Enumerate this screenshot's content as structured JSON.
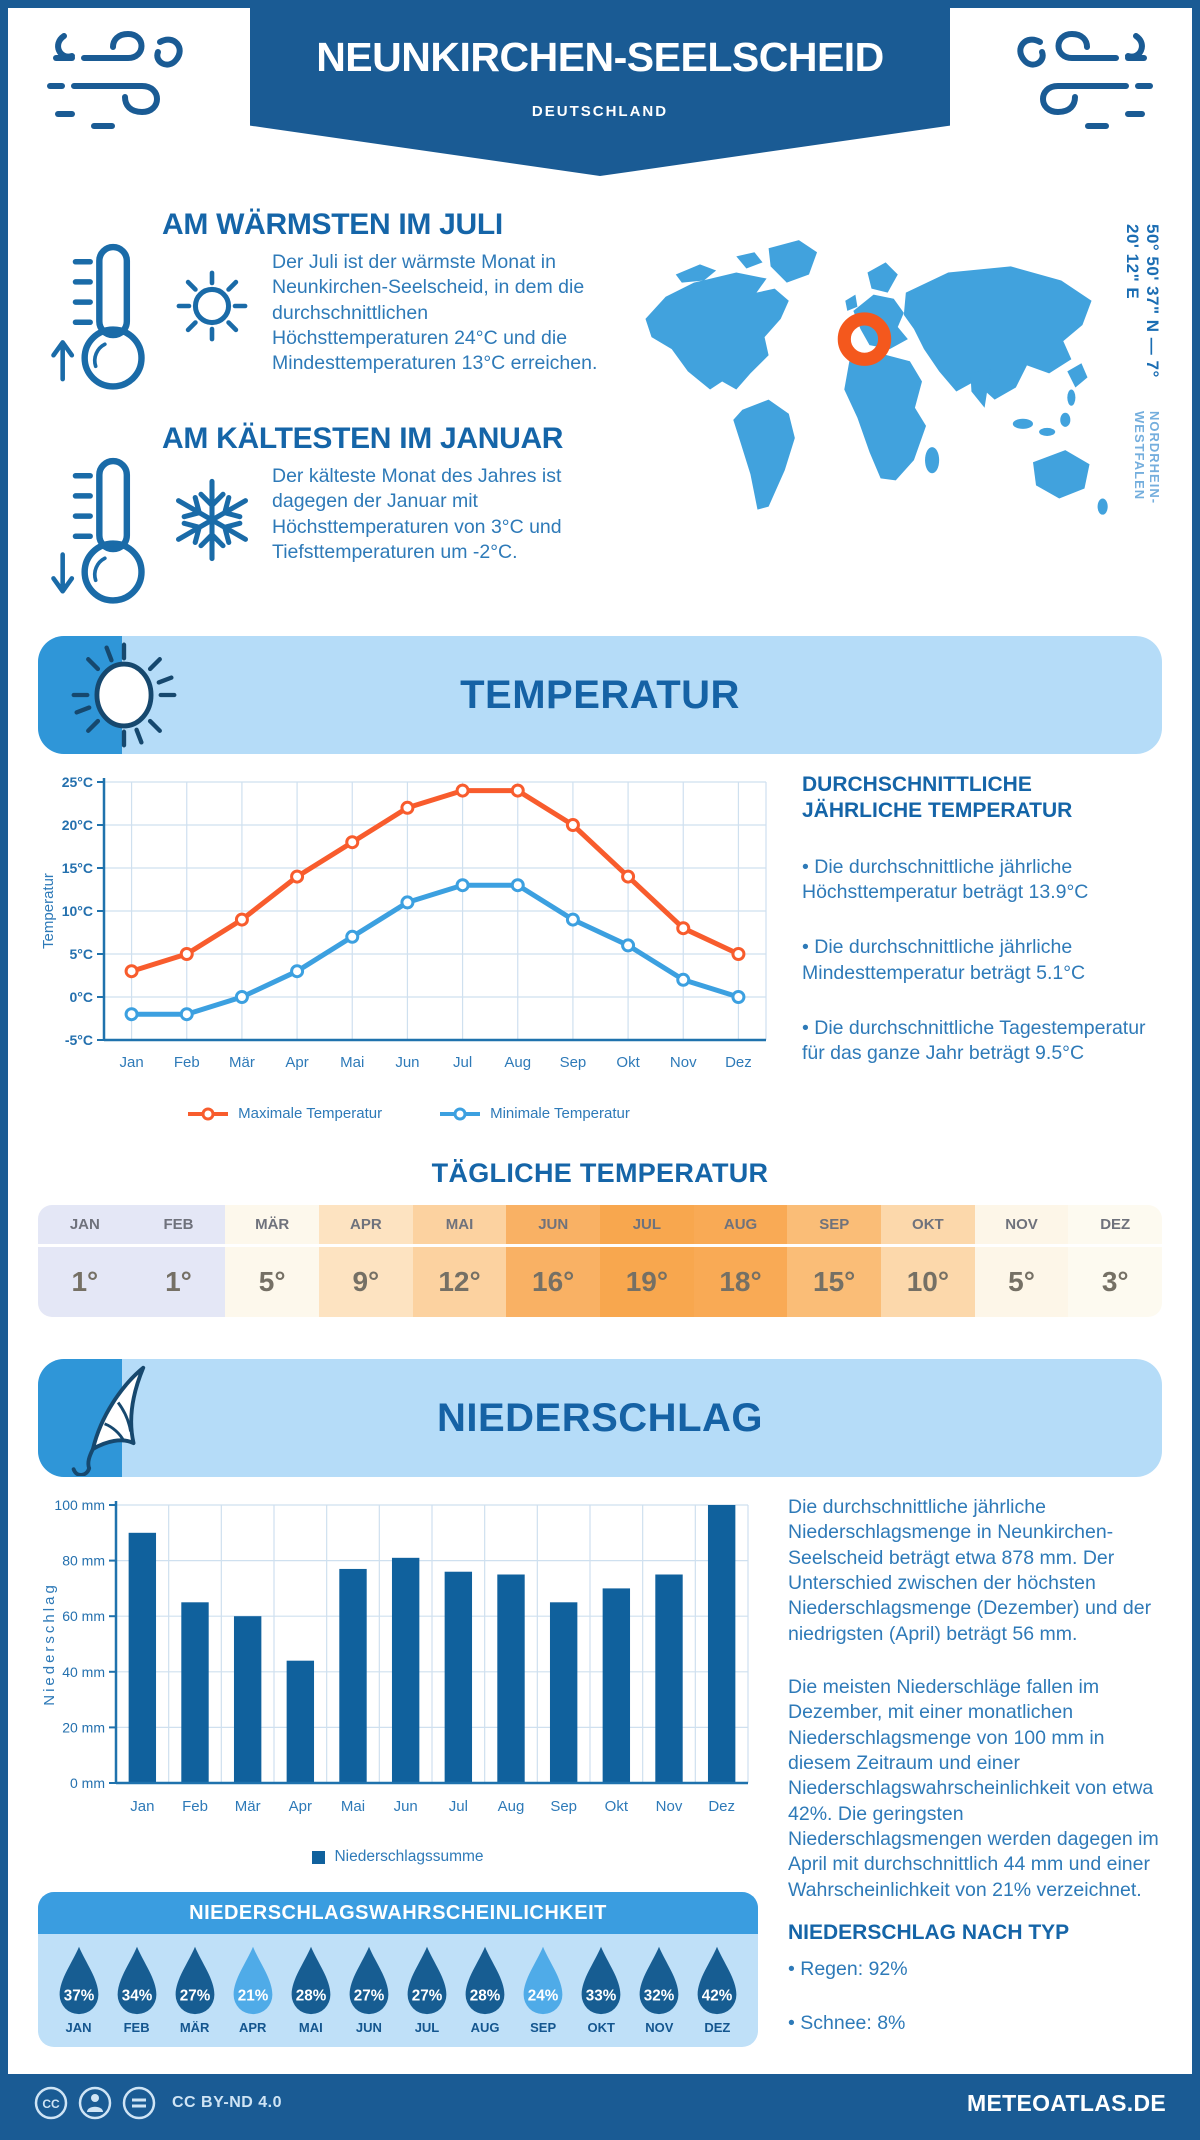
{
  "header": {
    "title": "NEUNKIRCHEN-SEELSCHEID",
    "country": "DEUTSCHLAND",
    "coordinates": "50° 50' 37\" N — 7° 20' 12\" E",
    "region": "NORDRHEIN-WESTFALEN"
  },
  "facts": {
    "warm": {
      "title": "AM WÄRMSTEN IM JULI",
      "text": "Der Juli ist der wärmste Monat in Neunkirchen-Seelscheid, in dem die durchschnittlichen Höchsttemperaturen 24°C und die Mindesttemperaturen 13°C erreichen."
    },
    "cold": {
      "title": "AM KÄLTESTEN IM JANUAR",
      "text": "Der kälteste Monat des Jahres ist dagegen der Januar mit Höchsttemperaturen von 3°C und Tiefsttemperaturen um -2°C."
    }
  },
  "temperature": {
    "banner": "TEMPERATUR",
    "annual_title": "DURCHSCHNITTLICHE JÄHRLICHE TEMPERATUR",
    "bullets": [
      "• Die durchschnittliche jährliche Höchsttemperatur beträgt 13.9°C",
      "• Die durchschnittliche jährliche Mindesttemperatur beträgt 5.1°C",
      "• Die durchschnittliche Tagestemperatur für das ganze Jahr beträgt 9.5°C"
    ],
    "daily_title": "TÄGLICHE TEMPERATUR",
    "daily": {
      "months": [
        "JAN",
        "FEB",
        "MÄR",
        "APR",
        "MAI",
        "JUN",
        "JUL",
        "AUG",
        "SEP",
        "OKT",
        "NOV",
        "DEZ"
      ],
      "values": [
        "1°",
        "1°",
        "5°",
        "9°",
        "12°",
        "16°",
        "19°",
        "18°",
        "15°",
        "10°",
        "5°",
        "3°"
      ],
      "colors": [
        "#e4e7f6",
        "#e4e7f6",
        "#fdf8ec",
        "#fde3c1",
        "#fcd2a0",
        "#f9b164",
        "#f8a74e",
        "#f9aa55",
        "#fabd77",
        "#fcd8ab",
        "#fdf6e8",
        "#fdfaf0"
      ]
    }
  },
  "precipitation": {
    "banner": "NIEDERSCHLAG",
    "paragraphs": [
      "Die durchschnittliche jährliche Niederschlagsmenge in Neunkirchen-Seelscheid beträgt etwa 878 mm. Der Unterschied zwischen der höchsten Niederschlagsmenge (Dezember) und der niedrigsten (April) beträgt 56 mm.",
      "Die meisten Niederschläge fallen im Dezember, mit einer monatlichen Niederschlagsmenge von 100 mm in diesem Zeitraum und einer Niederschlagswahrscheinlichkeit von etwa 42%. Die geringsten Niederschlagsmengen werden dagegen im April mit durchschnittlich 44 mm und einer Wahrscheinlichkeit von 21% verzeichnet."
    ],
    "type_title": "NIEDERSCHLAG NACH TYP",
    "type_bullets": [
      "• Regen: 92%",
      "• Schnee: 8%"
    ],
    "probability": {
      "title": "NIEDERSCHLAGSWAHRSCHEINLICHKEIT",
      "months": [
        "JAN",
        "FEB",
        "MÄR",
        "APR",
        "MAI",
        "JUN",
        "JUL",
        "AUG",
        "SEP",
        "OKT",
        "NOV",
        "DEZ"
      ],
      "values": [
        "37%",
        "34%",
        "27%",
        "21%",
        "28%",
        "27%",
        "27%",
        "28%",
        "24%",
        "33%",
        "32%",
        "42%"
      ],
      "light_indices": [
        3,
        8
      ],
      "drop_dark": "#175d92",
      "drop_light": "#4fabe8"
    }
  },
  "chart_data": [
    {
      "type": "line",
      "categories": [
        "Jan",
        "Feb",
        "Mär",
        "Apr",
        "Mai",
        "Jun",
        "Jul",
        "Aug",
        "Sep",
        "Okt",
        "Nov",
        "Dez"
      ],
      "series": [
        {
          "name": "Maximale Temperatur",
          "color": "#f85c2d",
          "values": [
            3,
            5,
            9,
            14,
            18,
            22,
            24,
            24,
            20,
            14,
            8,
            5
          ]
        },
        {
          "name": "Minimale Temperatur",
          "color": "#3ca0e0",
          "values": [
            -2,
            -2,
            0,
            3,
            7,
            11,
            13,
            13,
            9,
            6,
            2,
            0
          ]
        }
      ],
      "ylabel": "Temperatur",
      "ylim": [
        -5,
        25
      ],
      "ytick_step": 5,
      "ytick_suffix": "°C",
      "ytick_labels": [
        "-5°C",
        "0°C",
        "5°C",
        "10°C",
        "15°C",
        "20°C",
        "25°C"
      ],
      "grid": true,
      "legend_position": "bottom"
    },
    {
      "type": "bar",
      "categories": [
        "Jan",
        "Feb",
        "Mär",
        "Apr",
        "Mai",
        "Jun",
        "Jul",
        "Aug",
        "Sep",
        "Okt",
        "Nov",
        "Dez"
      ],
      "series": [
        {
          "name": "Niederschlagssumme",
          "color": "#10619d",
          "values": [
            90,
            65,
            60,
            44,
            77,
            81,
            76,
            75,
            65,
            70,
            75,
            100
          ]
        }
      ],
      "ylabel": "Niederschlag",
      "ylim": [
        0,
        100
      ],
      "ytick_step": 20,
      "ytick_suffix": " mm",
      "ytick_labels": [
        "0 mm",
        "20 mm",
        "40 mm",
        "60 mm",
        "80 mm",
        "100 mm"
      ],
      "grid": true,
      "legend_position": "bottom"
    }
  ],
  "colors": {
    "primary": "#1a5b94",
    "heading": "#1565a8",
    "body_text": "#2e7ab8",
    "banner_bg": "#b5dcf8",
    "banner_accent": "#2f96d8",
    "map_fill": "#41a2dd",
    "marker": "#f4581d",
    "axis": "#1f72ad",
    "gridline": "#cfe0ef"
  },
  "footer": {
    "license": "CC BY-ND 4.0",
    "site": "METEOATLAS.DE"
  }
}
